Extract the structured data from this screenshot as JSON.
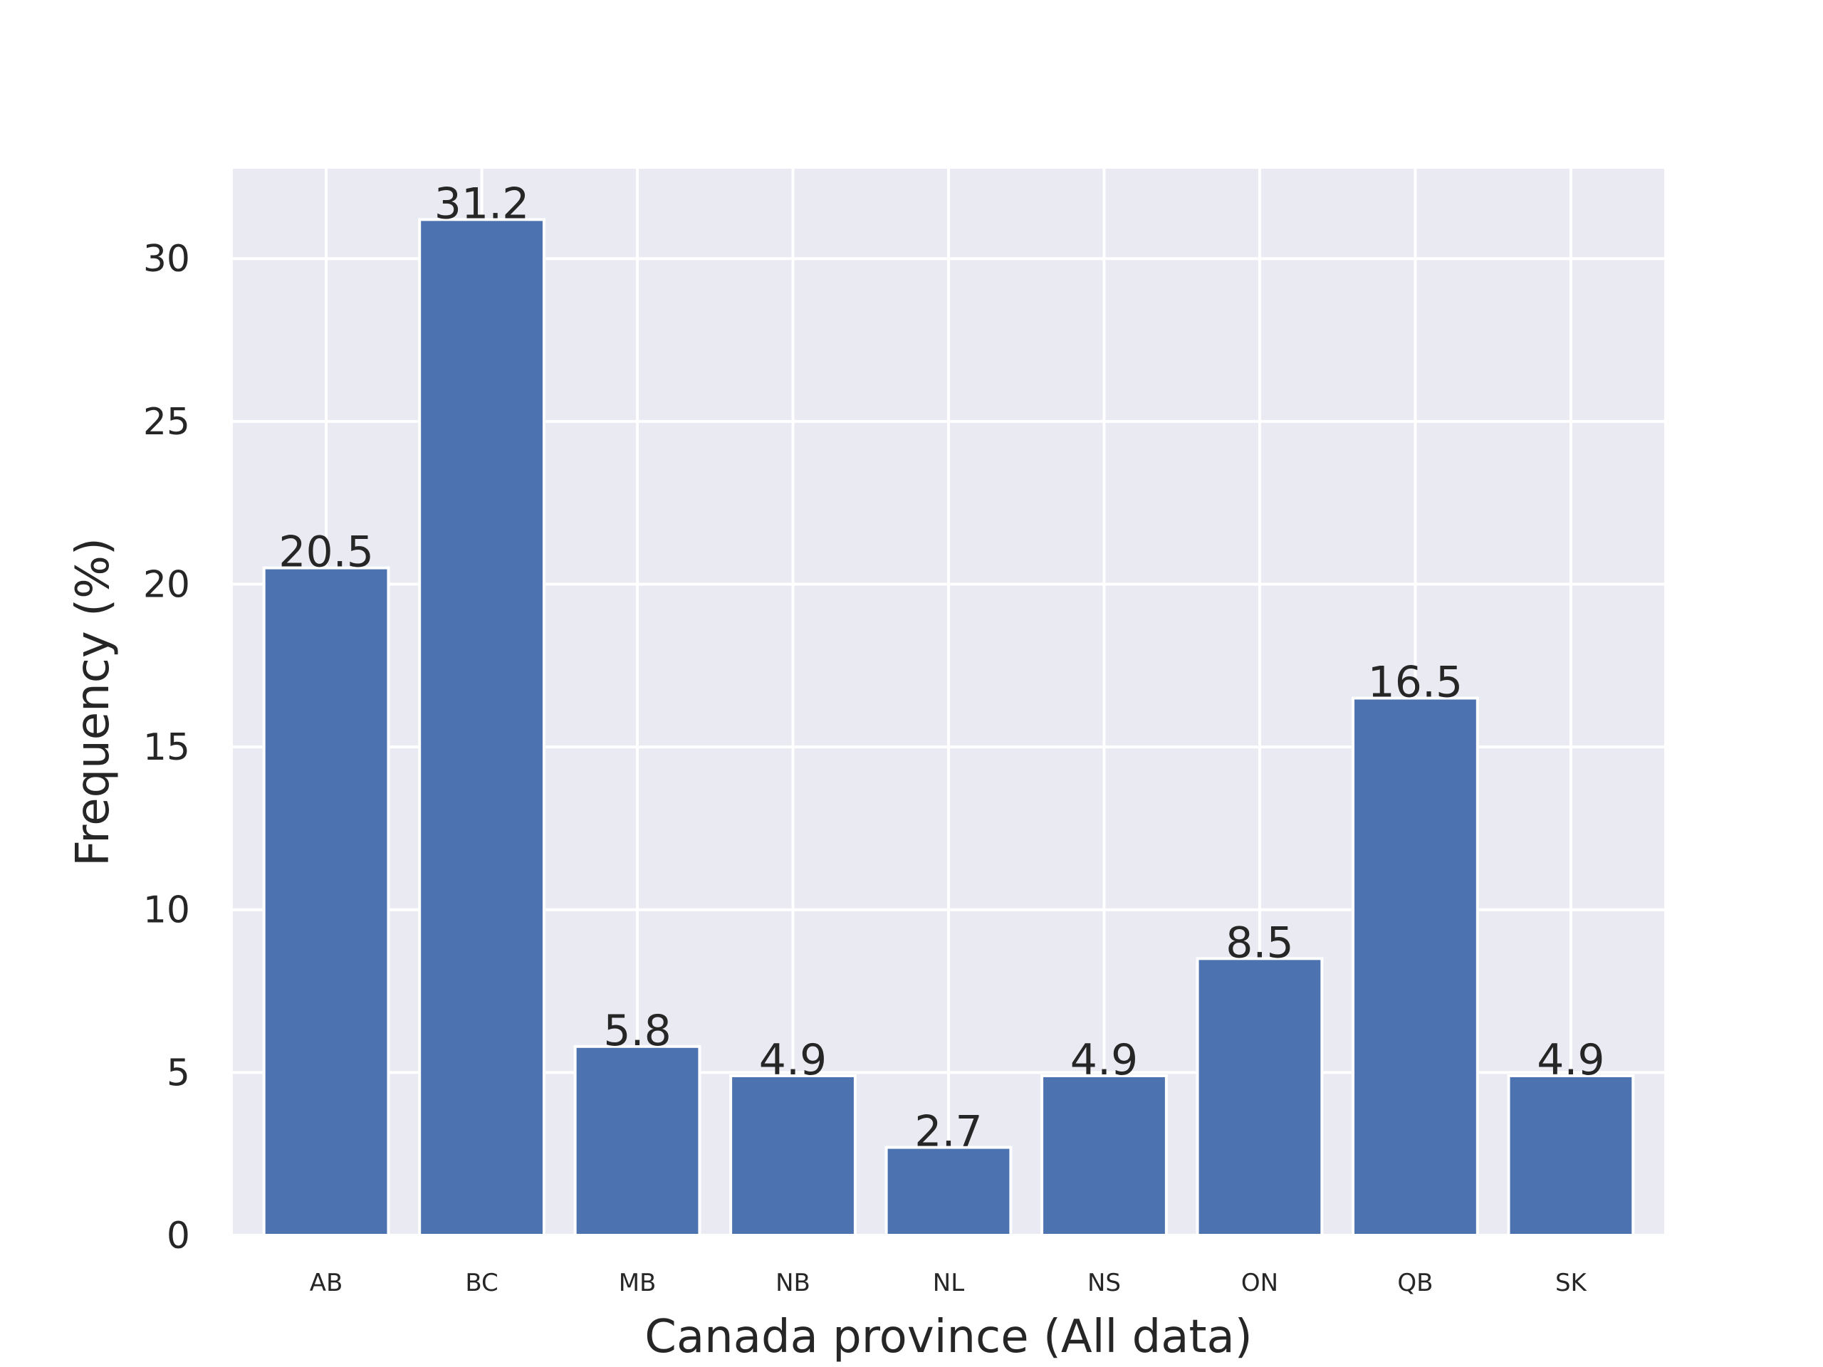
{
  "chart_data": {
    "type": "bar",
    "title": "",
    "xlabel": "Canada province (All data)",
    "ylabel": "Frequency (%)",
    "categories": [
      "AB",
      "BC",
      "MB",
      "NB",
      "NL",
      "NS",
      "ON",
      "QB",
      "SK"
    ],
    "values": [
      20.5,
      31.2,
      5.8,
      4.9,
      2.7,
      4.9,
      8.5,
      16.5,
      4.9
    ],
    "value_labels": [
      "20.5",
      "31.2",
      "5.8",
      "4.9",
      "2.7",
      "4.9",
      "8.5",
      "16.5",
      "4.9"
    ],
    "ylim": [
      0,
      32.76
    ],
    "yticks": [
      0,
      5,
      10,
      15,
      20,
      25,
      30
    ],
    "ytick_labels": [
      "0",
      "5",
      "10",
      "15",
      "20",
      "25",
      "30"
    ],
    "grid": true,
    "legend": "none",
    "colors": {
      "bar": "#4c72b0",
      "plot_background": "#eaeaf2",
      "grid": "#ffffff",
      "text": "#262626"
    }
  }
}
